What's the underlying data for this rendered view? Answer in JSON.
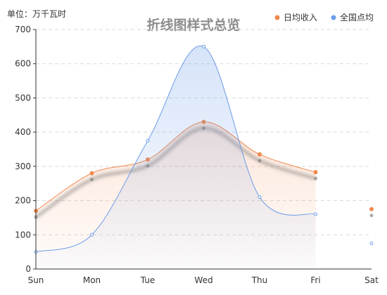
{
  "chart_data": {
    "type": "line",
    "title": "折线图样式总览",
    "unit_label": "单位：万千瓦时",
    "categories": [
      "Sun",
      "Mon",
      "Tue",
      "Wed",
      "Thu",
      "Fri",
      "Sat"
    ],
    "ylim": [
      0,
      700
    ],
    "y_ticks": [
      0,
      100,
      200,
      300,
      400,
      500,
      600,
      700
    ],
    "grid": true,
    "smooth": true,
    "legend": {
      "position": "top-right"
    },
    "series": [
      {
        "name": "日均收入",
        "color": "#f0894e",
        "values": [
          170,
          280,
          320,
          430,
          335,
          283,
          175
        ],
        "area": true,
        "shadow": true
      },
      {
        "name": "全国点均",
        "color": "#6c9ce8",
        "values": [
          50,
          100,
          375,
          650,
          210,
          160,
          75
        ],
        "area": true,
        "shadow": false
      }
    ]
  }
}
